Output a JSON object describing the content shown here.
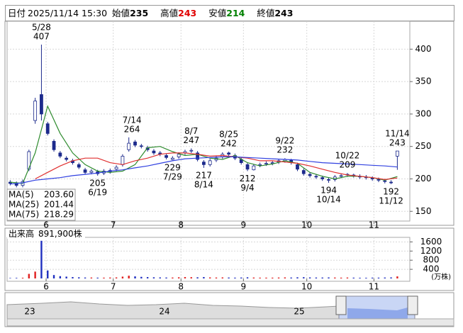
{
  "header": {
    "date_label": "日付",
    "date": "2025/11/14 15:30",
    "open_label": "始値",
    "open": 235,
    "high_label": "高値",
    "high": 243,
    "high_color": "#e00000",
    "low_label": "安値",
    "low": 214,
    "low_color": "#008000",
    "close_label": "終値",
    "close": 243
  },
  "chart_data": [
    {
      "type": "candlestick",
      "x": [
        1,
        3,
        5,
        7,
        9,
        11,
        13,
        15,
        17,
        19,
        21,
        23,
        25,
        27,
        29,
        31,
        33,
        35,
        37,
        39,
        41,
        43,
        45,
        47,
        49,
        51,
        53,
        55,
        57,
        59,
        61,
        63,
        65,
        67,
        69,
        71,
        73,
        75,
        77,
        79,
        81,
        83,
        85,
        87,
        89,
        91,
        93,
        95,
        97,
        99,
        101,
        103,
        105,
        107,
        109,
        111,
        113,
        115,
        117,
        119,
        121,
        123,
        125
      ],
      "open": [
        195,
        193,
        190,
        215,
        290,
        330,
        285,
        258,
        240,
        232,
        228,
        222,
        214,
        210,
        211,
        209,
        211,
        215,
        222,
        245,
        257,
        251,
        248,
        243,
        240,
        236,
        230,
        234,
        240,
        243,
        240,
        226,
        222,
        229,
        234,
        240,
        236,
        230,
        222,
        214,
        221,
        223,
        224,
        226,
        228,
        229,
        222,
        213,
        207,
        204,
        202,
        199,
        199,
        204,
        206,
        206,
        204,
        203,
        201,
        199,
        197,
        195,
        235
      ],
      "high": [
        198,
        196,
        199,
        245,
        325,
        407,
        288,
        261,
        243,
        235,
        231,
        225,
        217,
        215,
        214,
        215,
        216,
        221,
        238,
        264,
        260,
        254,
        251,
        246,
        243,
        239,
        235,
        241,
        245,
        247,
        243,
        229,
        231,
        235,
        241,
        242,
        239,
        233,
        225,
        223,
        225,
        227,
        228,
        231,
        232,
        231,
        225,
        216,
        210,
        207,
        205,
        202,
        206,
        208,
        209,
        208,
        207,
        206,
        204,
        202,
        200,
        198,
        243
      ],
      "low": [
        190,
        187,
        187,
        212,
        285,
        290,
        267,
        242,
        232,
        227,
        222,
        215,
        207,
        207,
        205,
        206,
        208,
        212,
        219,
        242,
        249,
        247,
        242,
        237,
        235,
        230,
        229,
        231,
        237,
        240,
        227,
        217,
        219,
        226,
        231,
        235,
        229,
        222,
        212,
        213,
        218,
        220,
        221,
        223,
        225,
        222,
        212,
        205,
        202,
        200,
        197,
        194,
        196,
        201,
        203,
        202,
        200,
        199,
        197,
        195,
        193,
        192,
        214
      ],
      "close": [
        193,
        190,
        196,
        242,
        320,
        300,
        270,
        245,
        235,
        230,
        225,
        218,
        210,
        212,
        208,
        212,
        213,
        218,
        235,
        255,
        252,
        250,
        245,
        240,
        238,
        233,
        232,
        238,
        242,
        244,
        230,
        222,
        228,
        232,
        238,
        238,
        232,
        225,
        215,
        220,
        222,
        224,
        225,
        228,
        230,
        225,
        215,
        208,
        205,
        203,
        200,
        198,
        203,
        205,
        207,
        205,
        203,
        202,
        200,
        198,
        196,
        194,
        243
      ],
      "colors": {
        "up": "#ffffff",
        "down": "#1c2a8c",
        "outline": "#1c2a8c"
      },
      "xlim": [
        0,
        129
      ],
      "xticks": [
        {
          "value": 12.5,
          "label": "6"
        },
        {
          "value": 34,
          "label": "7"
        },
        {
          "value": 55.7,
          "label": "8"
        },
        {
          "value": 75.7,
          "label": "9"
        },
        {
          "value": 96,
          "label": "10"
        },
        {
          "value": 117.5,
          "label": "11"
        }
      ],
      "ylim": [
        135,
        443
      ],
      "yticks": [
        150,
        200,
        250,
        300,
        350,
        400
      ],
      "grid": true,
      "series": [
        {
          "name": "MA(5)",
          "color": "#2e8b2e",
          "latest": {
            "value": 203.6,
            "label": "203.60"
          },
          "x": [
            1,
            5,
            9,
            13,
            17,
            21,
            25,
            29,
            33,
            37,
            41,
            45,
            49,
            53,
            57,
            61,
            65,
            69,
            73,
            77,
            81,
            85,
            89,
            93,
            97,
            101,
            105,
            109,
            113,
            117,
            121,
            125
          ],
          "values": [
            195,
            193,
            240,
            312,
            270,
            240,
            222,
            212,
            210,
            212,
            222,
            248,
            250,
            242,
            236,
            238,
            232,
            230,
            236,
            225,
            220,
            223,
            228,
            224,
            210,
            204,
            200,
            204,
            204,
            202,
            198,
            203.6
          ]
        },
        {
          "name": "MA(25)",
          "color": "#e03030",
          "latest": {
            "value": 201.44,
            "label": "201.44"
          },
          "x": [
            9,
            13,
            17,
            21,
            25,
            29,
            33,
            37,
            41,
            45,
            49,
            53,
            57,
            61,
            65,
            69,
            73,
            77,
            81,
            85,
            89,
            93,
            97,
            101,
            105,
            109,
            113,
            117,
            121,
            125
          ],
          "values": [
            200,
            210,
            220,
            228,
            232,
            232,
            225,
            222,
            228,
            232,
            238,
            240,
            240,
            238,
            235,
            236,
            234,
            232,
            228,
            228,
            226,
            224,
            220,
            215,
            210,
            206,
            204,
            202,
            199,
            201.44
          ]
        },
        {
          "name": "MA(75)",
          "color": "#3040e0",
          "latest": {
            "value": 218.29,
            "label": "218.29"
          },
          "x": [
            1,
            5,
            9,
            13,
            17,
            21,
            25,
            29,
            33,
            37,
            41,
            45,
            49,
            53,
            57,
            61,
            65,
            69,
            73,
            77,
            81,
            85,
            89,
            93,
            97,
            101,
            105,
            109,
            113,
            117,
            121,
            125
          ],
          "values": [
            192,
            194,
            198,
            200,
            202,
            205,
            207,
            209,
            212,
            214,
            217,
            220,
            224,
            228,
            231,
            232,
            233,
            234,
            234,
            233,
            232,
            231,
            230,
            229,
            227,
            225,
            224,
            223,
            222,
            221,
            220,
            218.29
          ]
        }
      ],
      "highs": [
        {
          "date": "5/28",
          "value": 407,
          "x": 11
        },
        {
          "date": "7/14",
          "value": 264,
          "x": 40
        },
        {
          "date": "8/7",
          "value": 247,
          "x": 59
        },
        {
          "date": "8/25",
          "value": 242,
          "x": 71
        },
        {
          "date": "9/22",
          "value": 232,
          "x": 89
        },
        {
          "date": "10/22",
          "value": 209,
          "x": 109
        },
        {
          "date": "11/14",
          "value": 243,
          "x": 125
        }
      ],
      "lows": [
        {
          "date": "6/19",
          "value": 205,
          "x": 29
        },
        {
          "date": "7/29",
          "value": 229,
          "x": 53
        },
        {
          "date": "8/14",
          "value": 217,
          "x": 63
        },
        {
          "date": "9/4",
          "value": 212,
          "x": 77
        },
        {
          "date": "10/14",
          "value": 194,
          "x": 103
        },
        {
          "date": "11/12",
          "value": 192,
          "x": 123
        }
      ]
    },
    {
      "type": "bar",
      "title": "出来高",
      "latest": {
        "value": 891900,
        "label": "891,900株"
      },
      "unit": "(万株)",
      "x": [
        1,
        3,
        5,
        7,
        9,
        11,
        13,
        15,
        17,
        19,
        21,
        23,
        25,
        27,
        29,
        31,
        33,
        35,
        37,
        39,
        41,
        43,
        45,
        47,
        49,
        51,
        53,
        55,
        57,
        59,
        61,
        63,
        65,
        67,
        69,
        71,
        73,
        75,
        77,
        79,
        81,
        83,
        85,
        87,
        89,
        91,
        93,
        95,
        97,
        99,
        101,
        103,
        105,
        107,
        109,
        111,
        113,
        115,
        117,
        119,
        121,
        123,
        125
      ],
      "values": [
        20,
        25,
        30,
        200,
        300,
        1650,
        350,
        150,
        100,
        80,
        60,
        50,
        40,
        40,
        35,
        35,
        40,
        45,
        80,
        120,
        90,
        70,
        60,
        50,
        45,
        40,
        40,
        50,
        60,
        55,
        50,
        60,
        45,
        40,
        45,
        40,
        35,
        40,
        50,
        40,
        35,
        35,
        35,
        40,
        45,
        40,
        50,
        55,
        45,
        40,
        40,
        45,
        40,
        35,
        40,
        35,
        30,
        30,
        35,
        35,
        40,
        45,
        89.19
      ],
      "colors": {
        "up": "#e02020",
        "down": "#2030c0"
      },
      "xlim": [
        0,
        129
      ],
      "xticks": [
        {
          "value": 12.5,
          "label": "6"
        },
        {
          "value": 34,
          "label": "7"
        },
        {
          "value": 55.7,
          "label": "8"
        },
        {
          "value": 75.7,
          "label": "9"
        },
        {
          "value": 96,
          "label": "10"
        },
        {
          "value": 117.5,
          "label": "11"
        }
      ],
      "ylim": [
        0,
        1800
      ],
      "yticks": [
        400,
        800,
        1200,
        1600
      ],
      "grid": true
    }
  ],
  "navigator": {
    "labels": [
      "23",
      "24",
      "25"
    ]
  }
}
